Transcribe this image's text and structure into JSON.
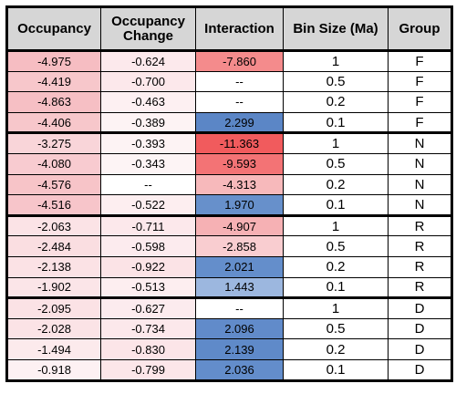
{
  "headers": [
    "Occupancy",
    "Occupancy Change",
    "Interaction",
    "Bin Size (Ma)",
    "Group"
  ],
  "groups": [
    {
      "rows": [
        {
          "occ": "-4.975",
          "occ_color": "#f6bdc2",
          "chg": "-0.624",
          "chg_color": "#fce9ec",
          "int": "-7.860",
          "int_color": "#f48b8c",
          "bin": "1",
          "grp": "F"
        },
        {
          "occ": "-4.419",
          "occ_color": "#f7c7cb",
          "chg": "-0.700",
          "chg_color": "#fce8eb",
          "int": "--",
          "int_color": "#ffffff",
          "bin": "0.5",
          "grp": "F"
        },
        {
          "occ": "-4.863",
          "occ_color": "#f6bfc4",
          "chg": "-0.463",
          "chg_color": "#fdf0f2",
          "int": "--",
          "int_color": "#ffffff",
          "bin": "0.2",
          "grp": "F"
        },
        {
          "occ": "-4.406",
          "occ_color": "#f7c7cb",
          "chg": "-0.389",
          "chg_color": "#fdf3f4",
          "int": "2.299",
          "int_color": "#5b86c6",
          "bin": "0.1",
          "grp": "F"
        }
      ]
    },
    {
      "rows": [
        {
          "occ": "-3.275",
          "occ_color": "#f9d5d9",
          "chg": "-0.393",
          "chg_color": "#fdf3f4",
          "int": "-11.363",
          "int_color": "#f15b5d",
          "bin": "1",
          "grp": "N"
        },
        {
          "occ": "-4.080",
          "occ_color": "#f8cbd0",
          "chg": "-0.343",
          "chg_color": "#fdf4f5",
          "int": "-9.593",
          "int_color": "#f37375",
          "bin": "0.5",
          "grp": "N"
        },
        {
          "occ": "-4.576",
          "occ_color": "#f7c4c8",
          "chg": "--",
          "chg_color": "#ffffff",
          "int": "-4.313",
          "int_color": "#f7b9bb",
          "bin": "0.2",
          "grp": "N"
        },
        {
          "occ": "-4.516",
          "occ_color": "#f7c5ca",
          "chg": "-0.522",
          "chg_color": "#fdeef0",
          "int": "1.970",
          "int_color": "#6790cb",
          "bin": "0.1",
          "grp": "N"
        }
      ]
    },
    {
      "rows": [
        {
          "occ": "-2.063",
          "occ_color": "#fbe3e6",
          "chg": "-0.711",
          "chg_color": "#fce8eb",
          "int": "-4.907",
          "int_color": "#f6b1b4",
          "bin": "1",
          "grp": "R"
        },
        {
          "occ": "-2.484",
          "occ_color": "#fadee1",
          "chg": "-0.598",
          "chg_color": "#fcebee",
          "int": "-2.858",
          "int_color": "#f9cdd0",
          "bin": "0.5",
          "grp": "R"
        },
        {
          "occ": "-2.138",
          "occ_color": "#fbe2e5",
          "chg": "-0.922",
          "chg_color": "#fbe3e6",
          "int": "2.021",
          "int_color": "#648ecb",
          "bin": "0.2",
          "grp": "R"
        },
        {
          "occ": "-1.902",
          "occ_color": "#fbe5e8",
          "chg": "-0.513",
          "chg_color": "#fdeef0",
          "int": "1.443",
          "int_color": "#9cb7df",
          "bin": "0.1",
          "grp": "R"
        }
      ]
    },
    {
      "rows": [
        {
          "occ": "-2.095",
          "occ_color": "#fbe2e5",
          "chg": "-0.627",
          "chg_color": "#fcebee",
          "int": "--",
          "int_color": "#ffffff",
          "bin": "1",
          "grp": "D"
        },
        {
          "occ": "-2.028",
          "occ_color": "#fbe3e6",
          "chg": "-0.734",
          "chg_color": "#fce8eb",
          "int": "2.096",
          "int_color": "#618bca",
          "bin": "0.5",
          "grp": "D"
        },
        {
          "occ": "-1.494",
          "occ_color": "#fceaec",
          "chg": "-0.830",
          "chg_color": "#fce5e8",
          "int": "2.139",
          "int_color": "#5f8ac9",
          "bin": "0.2",
          "grp": "D"
        },
        {
          "occ": "-0.918",
          "occ_color": "#fdf1f3",
          "chg": "-0.799",
          "chg_color": "#fce6e9",
          "int": "2.036",
          "int_color": "#638dcb",
          "bin": "0.1",
          "grp": "D"
        }
      ]
    }
  ]
}
